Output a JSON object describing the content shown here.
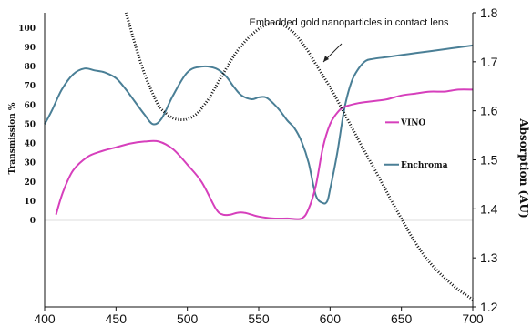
{
  "chart_data": {
    "type": "line",
    "xlabel": "",
    "ylabel_left": "Transmission %",
    "ylabel_right": "Absorption (AU)",
    "xlim": [
      400,
      700
    ],
    "xticks": [
      400,
      450,
      500,
      550,
      600,
      650,
      700
    ],
    "left_ylim": [
      -45,
      108
    ],
    "left_yticks": [
      0,
      10,
      20,
      30,
      40,
      50,
      60,
      70,
      80,
      90,
      100
    ],
    "right_ylim": [
      1.2,
      1.8
    ],
    "right_yticks": [
      "1.2",
      "1.3",
      "1.4",
      "1.5",
      "1.6",
      "1.7",
      "1.8"
    ],
    "grid": false,
    "annotation": "Embedded gold nanoparticles in contact lens",
    "series": [
      {
        "name": "Enchroma",
        "axis": "left",
        "color": "#4a7f96",
        "style": "solid",
        "x": [
          400,
          405,
          412,
          420,
          428,
          435,
          442,
          450,
          457,
          463,
          470,
          476,
          482,
          490,
          500,
          510,
          520,
          527,
          533,
          538,
          545,
          550,
          555,
          560,
          565,
          570,
          575,
          580,
          585,
          590,
          595,
          598,
          600,
          605,
          610,
          615,
          620,
          625,
          630,
          640,
          650,
          660,
          670,
          680,
          690,
          700
        ],
        "y": [
          50,
          57,
          68,
          76,
          79,
          78,
          77,
          74,
          68,
          62,
          55,
          50,
          53,
          65,
          77,
          80,
          79,
          75,
          69,
          65,
          63,
          64,
          64,
          61,
          57,
          52,
          48,
          41,
          30,
          13,
          9,
          10,
          16,
          35,
          58,
          72,
          79,
          83,
          84,
          85,
          86,
          87,
          88,
          89,
          90,
          91
        ]
      },
      {
        "name": "VINO",
        "axis": "left",
        "color": "#d63fbc",
        "style": "solid",
        "x": [
          408,
          413,
          420,
          430,
          440,
          450,
          460,
          470,
          480,
          490,
          500,
          510,
          520,
          525,
          530,
          535,
          540,
          545,
          550,
          560,
          570,
          580,
          585,
          590,
          595,
          600,
          605,
          610,
          620,
          630,
          640,
          650,
          660,
          670,
          680,
          690,
          700
        ],
        "y": [
          3,
          15,
          26,
          33,
          36,
          38,
          40,
          41,
          41,
          37,
          29,
          20,
          6,
          3,
          3,
          4,
          4,
          3,
          2,
          1,
          1,
          1,
          6,
          18,
          38,
          50,
          56,
          59,
          61,
          62,
          63,
          65,
          66,
          67,
          67,
          68,
          68
        ]
      },
      {
        "name": "Embedded gold nanoparticles in contact lens",
        "axis": "right",
        "color": "#111111",
        "style": "dotted",
        "segments": [
          {
            "x": [
              457,
              460,
              465,
              470,
              475,
              480,
              485,
              490,
              495,
              498
            ],
            "y": [
              1.8,
              1.77,
              1.72,
              1.675,
              1.64,
              1.61,
              1.595,
              1.585,
              1.582,
              1.582
            ]
          },
          {
            "x": [
              499,
              505,
              510,
              515,
              520,
              525,
              530,
              535,
              540,
              545,
              550,
              555,
              560,
              563,
              566,
              570,
              575,
              580,
              585,
              590,
              600,
              610,
              620,
              630,
              640,
              650,
              660,
              670,
              680,
              690,
              700
            ],
            "y": [
              1.582,
              1.59,
              1.605,
              1.625,
              1.65,
              1.675,
              1.7,
              1.722,
              1.74,
              1.755,
              1.767,
              1.775,
              1.778,
              1.778,
              1.776,
              1.77,
              1.758,
              1.74,
              1.72,
              1.695,
              1.648,
              1.595,
              1.54,
              1.487,
              1.433,
              1.38,
              1.33,
              1.29,
              1.26,
              1.235,
              1.215
            ]
          }
        ]
      }
    ]
  }
}
